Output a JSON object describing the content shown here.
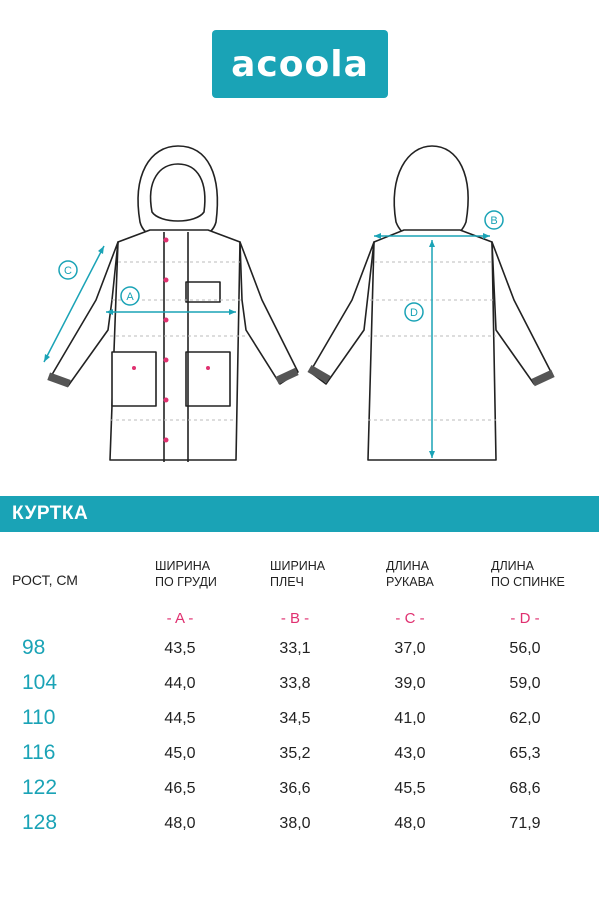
{
  "brand": {
    "name": "acoola",
    "color": "#1aa3b6"
  },
  "diagram": {
    "markers": [
      "A",
      "B",
      "C",
      "D"
    ],
    "marker_color": "#1aa3b6",
    "pink_accent": "#e03070"
  },
  "title": "КУРТКА",
  "table": {
    "row_header": "РОСТ, СМ",
    "columns": [
      {
        "label_line1": "ШИРИНА",
        "label_line2": "ПО ГРУДИ",
        "code": "- A -"
      },
      {
        "label_line1": "ШИРИНА",
        "label_line2": "ПЛЕЧ",
        "code": "- B -"
      },
      {
        "label_line1": "ДЛИНА",
        "label_line2": "РУКАВА",
        "code": "- C -"
      },
      {
        "label_line1": "ДЛИНА",
        "label_line2": "ПО СПИНКЕ",
        "code": "- D -"
      }
    ],
    "rows": [
      {
        "size": "98",
        "values": [
          "43,5",
          "33,1",
          "37,0",
          "56,0"
        ]
      },
      {
        "size": "104",
        "values": [
          "44,0",
          "33,8",
          "39,0",
          "59,0"
        ]
      },
      {
        "size": "110",
        "values": [
          "44,5",
          "34,5",
          "41,0",
          "62,0"
        ]
      },
      {
        "size": "116",
        "values": [
          "45,0",
          "35,2",
          "43,0",
          "65,3"
        ]
      },
      {
        "size": "122",
        "values": [
          "46,5",
          "36,6",
          "45,5",
          "68,6"
        ]
      },
      {
        "size": "128",
        "values": [
          "48,0",
          "38,0",
          "48,0",
          "71,9"
        ]
      }
    ]
  }
}
